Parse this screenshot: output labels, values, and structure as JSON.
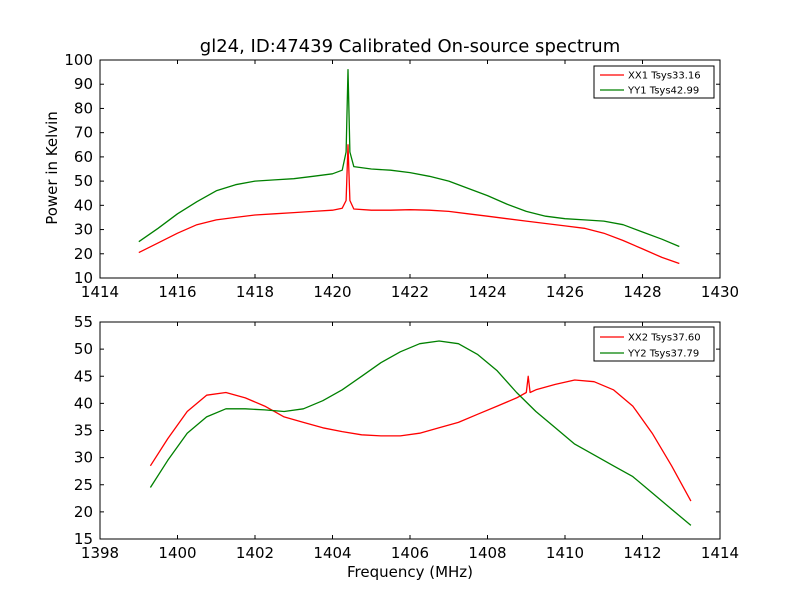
{
  "chart_data": [
    {
      "type": "line",
      "title": "gl24, ID:47439 Calibrated On-source spectrum",
      "xlabel": "",
      "ylabel": "Power in Kelvin",
      "xlim": [
        1414,
        1430
      ],
      "ylim": [
        10,
        100
      ],
      "xticks": [
        "1414",
        "1416",
        "1418",
        "1420",
        "1422",
        "1424",
        "1426",
        "1428",
        "1430"
      ],
      "yticks": [
        "10",
        "20",
        "30",
        "40",
        "50",
        "60",
        "70",
        "80",
        "90",
        "100"
      ],
      "legend_position": "top-right",
      "grid": false,
      "series": [
        {
          "name": "XX1 Tsys33.16",
          "color": "#ff0000",
          "x": [
            1415.0,
            1415.5,
            1416.0,
            1416.5,
            1417.0,
            1417.5,
            1418.0,
            1418.5,
            1419.0,
            1419.5,
            1420.0,
            1420.25,
            1420.35,
            1420.4,
            1420.45,
            1420.55,
            1421.0,
            1421.5,
            1422.0,
            1422.5,
            1423.0,
            1423.5,
            1424.0,
            1424.5,
            1425.0,
            1425.5,
            1426.0,
            1426.5,
            1427.0,
            1427.5,
            1428.0,
            1428.5,
            1428.95
          ],
          "y": [
            20.5,
            24.5,
            28.5,
            32.0,
            34.0,
            35.0,
            36.0,
            36.5,
            37.0,
            37.5,
            38.0,
            38.8,
            42.0,
            65.0,
            42.0,
            38.5,
            38.0,
            38.0,
            38.2,
            38.0,
            37.5,
            36.5,
            35.5,
            34.5,
            33.5,
            32.5,
            31.5,
            30.5,
            28.5,
            25.5,
            22.0,
            18.5,
            16.0
          ]
        },
        {
          "name": "YY1 Tsys42.99",
          "color": "#008000",
          "x": [
            1415.0,
            1415.5,
            1416.0,
            1416.5,
            1417.0,
            1417.5,
            1418.0,
            1418.5,
            1419.0,
            1419.5,
            1420.0,
            1420.25,
            1420.35,
            1420.4,
            1420.45,
            1420.55,
            1421.0,
            1421.5,
            1422.0,
            1422.5,
            1423.0,
            1423.5,
            1424.0,
            1424.5,
            1425.0,
            1425.5,
            1426.0,
            1426.5,
            1427.0,
            1427.5,
            1428.0,
            1428.5,
            1428.95
          ],
          "y": [
            25.0,
            30.5,
            36.5,
            41.5,
            46.0,
            48.5,
            50.0,
            50.5,
            51.0,
            52.0,
            53.0,
            54.5,
            62.0,
            96.0,
            62.0,
            56.0,
            55.0,
            54.5,
            53.5,
            52.0,
            50.0,
            47.0,
            44.0,
            40.5,
            37.5,
            35.5,
            34.5,
            34.0,
            33.5,
            32.0,
            29.0,
            26.0,
            23.0
          ]
        }
      ]
    },
    {
      "type": "line",
      "title": "",
      "xlabel": "Frequency (MHz)",
      "ylabel": "",
      "xlim": [
        1398,
        1414
      ],
      "ylim": [
        15,
        55
      ],
      "xticks": [
        "1398",
        "1400",
        "1402",
        "1404",
        "1406",
        "1408",
        "1410",
        "1412",
        "1414"
      ],
      "yticks": [
        "15",
        "20",
        "25",
        "30",
        "35",
        "40",
        "45",
        "50",
        "55"
      ],
      "legend_position": "top-right",
      "grid": false,
      "series": [
        {
          "name": "XX2 Tsys37.60",
          "color": "#ff0000",
          "x": [
            1399.3,
            1399.75,
            1400.25,
            1400.75,
            1401.25,
            1401.75,
            1402.25,
            1402.75,
            1403.25,
            1403.75,
            1404.25,
            1404.75,
            1405.25,
            1405.75,
            1406.25,
            1406.75,
            1407.25,
            1407.75,
            1408.25,
            1408.75,
            1409.0,
            1409.05,
            1409.1,
            1409.25,
            1409.75,
            1410.25,
            1410.75,
            1411.25,
            1411.75,
            1412.25,
            1412.75,
            1413.25
          ],
          "y": [
            28.5,
            33.5,
            38.5,
            41.5,
            42.0,
            41.0,
            39.5,
            37.5,
            36.5,
            35.5,
            34.8,
            34.2,
            34.0,
            34.0,
            34.5,
            35.5,
            36.5,
            38.0,
            39.5,
            41.0,
            42.0,
            45.0,
            42.0,
            42.5,
            43.5,
            44.3,
            44.0,
            42.5,
            39.5,
            34.5,
            28.5,
            22.0
          ]
        },
        {
          "name": "YY2 Tsys37.79",
          "color": "#008000",
          "x": [
            1399.3,
            1399.75,
            1400.25,
            1400.75,
            1401.25,
            1401.75,
            1402.25,
            1402.75,
            1403.25,
            1403.75,
            1404.25,
            1404.75,
            1405.25,
            1405.75,
            1406.25,
            1406.75,
            1407.25,
            1407.75,
            1408.25,
            1408.75,
            1409.25,
            1409.75,
            1410.25,
            1410.75,
            1411.25,
            1411.75,
            1412.25,
            1412.75,
            1413.25
          ],
          "y": [
            24.5,
            29.5,
            34.5,
            37.5,
            39.0,
            39.0,
            38.8,
            38.5,
            39.0,
            40.5,
            42.5,
            45.0,
            47.5,
            49.5,
            51.0,
            51.5,
            51.0,
            49.0,
            46.0,
            42.0,
            38.5,
            35.5,
            32.5,
            30.5,
            28.5,
            26.5,
            23.5,
            20.5,
            17.5
          ]
        }
      ]
    }
  ]
}
